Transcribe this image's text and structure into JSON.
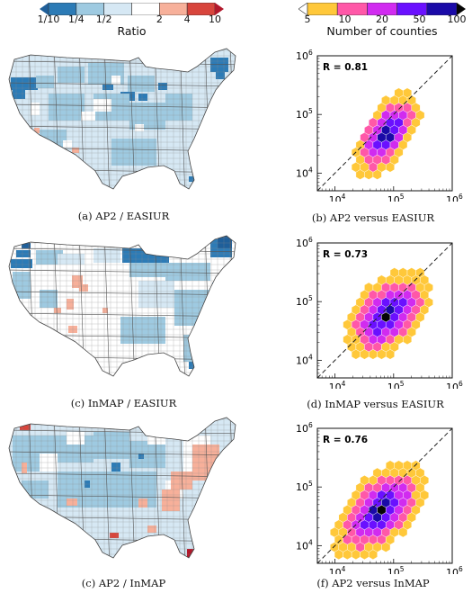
{
  "colorbar_ratio": {
    "title": "Ratio",
    "ticks": [
      "1/10",
      "1/4",
      "1/2",
      "2",
      "4",
      "10"
    ],
    "colors": [
      "#2c7bb6",
      "#9ecae1",
      "#d6e8f4",
      "#ffffff",
      "#f7b09a",
      "#d8453c"
    ],
    "arrow_low": "#1f5f9a",
    "arrow_high": "#b2182b"
  },
  "colorbar_counties": {
    "title": "Number of counties",
    "ticks": [
      "5",
      "10",
      "20",
      "50",
      "100"
    ],
    "colors": [
      "#ffc83a",
      "#ff58a8",
      "#d12bf0",
      "#6a10ff",
      "#1a0aa8"
    ],
    "arrow_low": "#ffffff",
    "arrow_high": "#050505"
  },
  "maps": [
    {
      "caption": "(a) AP2 / EASIUR"
    },
    {
      "caption": "(c) InMAP / EASIUR"
    },
    {
      "caption": "(c) AP2 / InMAP"
    }
  ],
  "chart_data": [
    {
      "type": "scatter",
      "subtype": "hexbin",
      "caption": "(b) AP2 versus EASIUR",
      "annotation": "R = 0.81",
      "xscale": "log",
      "yscale": "log",
      "xlim": [
        5000,
        1000000
      ],
      "ylim": [
        5000,
        1000000
      ],
      "xticks": [
        "10^4",
        "10^5",
        "10^6"
      ],
      "yticks": [
        "10^4",
        "10^5",
        "10^6"
      ],
      "reference_line": "1:1 dashed",
      "axis_center": [
        75000,
        45000
      ],
      "axis_dir": 1.5,
      "spread_major": 0.45,
      "spread_minor": 0.22
    },
    {
      "type": "scatter",
      "subtype": "hexbin",
      "caption": "(d) InMAP versus EASIUR",
      "annotation": "R = 0.73",
      "xscale": "log",
      "yscale": "log",
      "xlim": [
        5000,
        1000000
      ],
      "ylim": [
        5000,
        1000000
      ],
      "xticks": [
        "10^4",
        "10^5",
        "10^6"
      ],
      "yticks": [
        "10^4",
        "10^5",
        "10^6"
      ],
      "reference_line": "1:1 dashed",
      "axis_center": [
        80000,
        60000
      ],
      "axis_dir": 1.1,
      "spread_major": 0.5,
      "spread_minor": 0.3
    },
    {
      "type": "scatter",
      "subtype": "hexbin",
      "caption": "(f) AP2 versus InMAP",
      "annotation": "R = 0.76",
      "xscale": "log",
      "yscale": "log",
      "xlim": [
        5000,
        1000000
      ],
      "ylim": [
        5000,
        1000000
      ],
      "xticks": [
        "10^4",
        "10^5",
        "10^6"
      ],
      "yticks": [
        "10^4",
        "10^5",
        "10^6"
      ],
      "reference_line": "1:1 dashed",
      "axis_center": [
        60000,
        40000
      ],
      "axis_dir": 1.1,
      "spread_major": 0.55,
      "spread_minor": 0.3
    }
  ]
}
